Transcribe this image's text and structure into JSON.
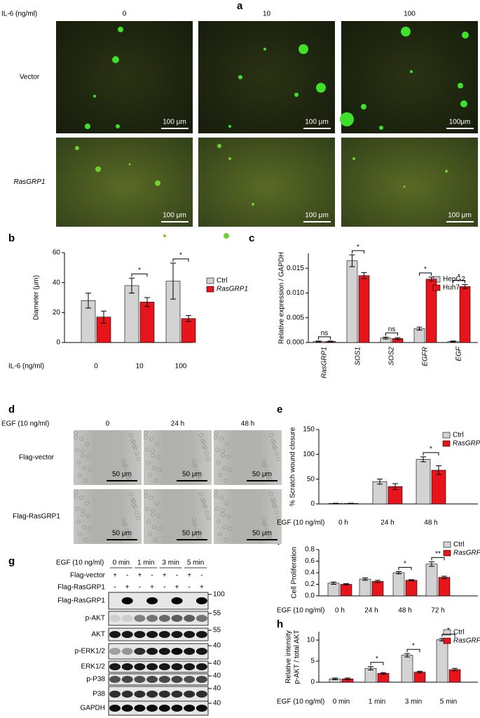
{
  "panel_labels": [
    "a",
    "b",
    "c",
    "d",
    "e",
    "f",
    "g",
    "h"
  ],
  "panel_a": {
    "treatment_label": "IL-6 (ng/ml)",
    "columns": [
      "0",
      "10",
      "100"
    ],
    "rows": [
      "Vector",
      "RasGRP1"
    ],
    "scale_bars": [
      [
        "100 μm",
        "100 μm",
        "100μm"
      ],
      [
        "100 μm",
        "100 μm",
        "100 μm"
      ]
    ]
  },
  "panel_d": {
    "treatment_label": "EGF (10 ng/ml)",
    "columns": [
      "0",
      "24 h",
      "48 h"
    ],
    "rows": [
      "Flag-vector",
      "Flag-RasGRP1"
    ],
    "scale_bars": [
      [
        "50 μm",
        "50 μm",
        "50 μm"
      ],
      [
        "50 μm",
        "50 μm",
        "50 μm"
      ]
    ]
  },
  "panel_g": {
    "treatment_label": "EGF (10 ng/ml)",
    "time_points": [
      "0 min",
      "1 min",
      "3 min",
      "5 min"
    ],
    "transfection_rows": [
      {
        "name": "Flag-vector",
        "signs": [
          "+",
          "-",
          "+",
          "-",
          "+",
          "-",
          "+",
          "-"
        ]
      },
      {
        "name": "Flag-RasGRP1",
        "signs": [
          "-",
          "+",
          "-",
          "+",
          "-",
          "+",
          "-",
          "+"
        ]
      }
    ],
    "blots": [
      {
        "name": "Flag-RasGRP1",
        "marker": "100"
      },
      {
        "name": "p-AKT",
        "marker": "55"
      },
      {
        "name": "AKT",
        "marker": "55"
      },
      {
        "name": "p-ERK1/2",
        "marker": "40"
      },
      {
        "name": "ERK1/2",
        "marker": "40"
      },
      {
        "name": "p-P38",
        "marker": "40"
      },
      {
        "name": "P38",
        "marker": "40"
      },
      {
        "name": "GAPDH",
        "marker": "40"
      }
    ]
  },
  "chart_data": [
    {
      "type": "bar",
      "ylabel": "Diameter (μm)",
      "xlabel": "IL-6 (ng/ml)",
      "categories": [
        "0",
        "10",
        "100"
      ],
      "series": [
        {
          "name": "Ctrl",
          "color": "#d3d3d3",
          "values": [
            28,
            38,
            41
          ],
          "errors": [
            5,
            5,
            12
          ]
        },
        {
          "name": "RasGRP1",
          "color": "#e8141b",
          "values": [
            17,
            27,
            16
          ],
          "errors": [
            4,
            3,
            2
          ]
        }
      ],
      "significance": [
        null,
        "*",
        "*"
      ],
      "ylim": [
        0,
        60
      ],
      "yticks": [
        0,
        20,
        40,
        60
      ]
    },
    {
      "type": "bar",
      "ylabel": "Relative expression / GAPDH",
      "categories": [
        "RasGRP1",
        "SOS1",
        "SOS2",
        "EGFR",
        "EGF"
      ],
      "series": [
        {
          "name": "HepG2",
          "color": "#d3d3d3",
          "values": [
            0.0002,
            0.0165,
            0.0009,
            0.0028,
            0.0002
          ],
          "errors": [
            0.0001,
            0.0012,
            0.0002,
            0.0003,
            0.0001
          ]
        },
        {
          "name": "Huh7",
          "color": "#e8141b",
          "values": [
            0.0002,
            0.0135,
            0.0008,
            0.0128,
            0.0113
          ],
          "errors": [
            0.0001,
            0.0006,
            0.0002,
            0.0004,
            0.0004
          ]
        }
      ],
      "significance": [
        "ns",
        "*",
        "ns",
        "*",
        "*"
      ],
      "ylim": [
        0,
        0.018
      ],
      "yticks": [
        {
          "value": 0,
          "label": "0.000"
        },
        {
          "value": 0.005,
          "label": "0.005"
        },
        {
          "value": 0.01,
          "label": "0.010"
        },
        {
          "value": 0.015,
          "label": "0.015"
        }
      ]
    },
    {
      "type": "bar",
      "ylabel": "% Scratch wound closure",
      "xlabel": "EGF (10 ng/ml)",
      "categories": [
        "0 h",
        "24 h",
        "48 h"
      ],
      "series": [
        {
          "name": "Ctrl",
          "color": "#d3d3d3",
          "values": [
            1,
            45,
            90
          ],
          "errors": [
            0.5,
            5,
            5
          ]
        },
        {
          "name": "RasGRP1",
          "color": "#e8141b",
          "values": [
            1,
            35,
            68
          ],
          "errors": [
            0.5,
            6,
            9
          ]
        }
      ],
      "significance": [
        null,
        null,
        "*"
      ],
      "ylim": [
        0,
        150
      ],
      "yticks": [
        0,
        50,
        100,
        150
      ]
    },
    {
      "type": "bar",
      "ylabel": "Cell Proliferation",
      "xlabel": "EGF (10 ng/ml)",
      "categories": [
        "0 h",
        "24 h",
        "48 h",
        "72 h"
      ],
      "series": [
        {
          "name": "Ctrl",
          "color": "#d3d3d3",
          "values": [
            0.22,
            0.29,
            0.4,
            0.55
          ],
          "errors": [
            0.02,
            0.02,
            0.02,
            0.04
          ]
        },
        {
          "name": "RasGRP1",
          "color": "#e8141b",
          "values": [
            0.2,
            0.25,
            0.27,
            0.32
          ],
          "errors": [
            0.01,
            0.02,
            0.01,
            0.02
          ]
        }
      ],
      "significance": [
        null,
        null,
        "*",
        "**"
      ],
      "ylim": [
        0,
        0.8
      ],
      "yticks": [
        {
          "value": 0,
          "label": "0.0"
        },
        {
          "value": 0.2,
          "label": "0.2"
        },
        {
          "value": 0.4,
          "label": "0.4"
        },
        {
          "value": 0.6,
          "label": "0.6"
        },
        {
          "value": 0.8,
          "label": "0.8"
        }
      ]
    },
    {
      "type": "bar",
      "ylabel": [
        "Relative intensity",
        "p-AKT / total AKT"
      ],
      "xlabel": "EGF (10 ng/ml)",
      "categories": [
        "0 min",
        "1 min",
        "3 min",
        "5 min"
      ],
      "series": [
        {
          "name": "Ctrl",
          "color": "#d3d3d3",
          "values": [
            0.8,
            3.3,
            6.4,
            10.1
          ],
          "errors": [
            0.2,
            0.4,
            0.4,
            0.3
          ]
        },
        {
          "name": "RasGRP1",
          "color": "#e8141b",
          "values": [
            0.8,
            2.1,
            2.4,
            3.0
          ],
          "errors": [
            0.2,
            0.2,
            0.2,
            0.3
          ]
        }
      ],
      "significance": [
        null,
        "*",
        "*",
        "*"
      ],
      "ylim": [
        0,
        12
      ],
      "yticks": [
        0,
        5,
        10
      ]
    }
  ]
}
